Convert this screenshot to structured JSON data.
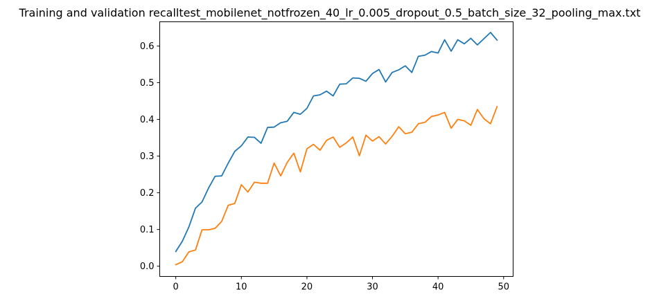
{
  "chart_data": {
    "type": "line",
    "title": "Training and validation recalltest_mobilenet_notfrozen_40_lr_0.005_dropout_0.5_batch_size_32_pooling_max.txt",
    "xlabel": "",
    "ylabel": "",
    "xlim": [
      -2.45,
      51.45
    ],
    "ylim": [
      -0.028,
      0.666
    ],
    "xticks": [
      0,
      10,
      20,
      30,
      40,
      50
    ],
    "yticks": [
      0.0,
      0.1,
      0.2,
      0.3,
      0.4,
      0.5,
      0.6
    ],
    "xtick_labels": [
      "0",
      "10",
      "20",
      "30",
      "40",
      "50"
    ],
    "ytick_labels": [
      "0.0",
      "0.1",
      "0.2",
      "0.3",
      "0.4",
      "0.5",
      "0.6"
    ],
    "grid": false,
    "x": [
      0,
      1,
      2,
      3,
      4,
      5,
      6,
      7,
      8,
      9,
      10,
      11,
      12,
      13,
      14,
      15,
      16,
      17,
      18,
      19,
      20,
      21,
      22,
      23,
      24,
      25,
      26,
      27,
      28,
      29,
      30,
      31,
      32,
      33,
      34,
      35,
      36,
      37,
      38,
      39,
      40,
      41,
      42,
      43,
      44,
      45,
      46,
      47,
      48,
      49
    ],
    "series": [
      {
        "color": "#1f77b4",
        "values": [
          0.04,
          0.068,
          0.107,
          0.158,
          0.175,
          0.213,
          0.245,
          0.246,
          0.281,
          0.313,
          0.328,
          0.352,
          0.351,
          0.335,
          0.378,
          0.379,
          0.391,
          0.395,
          0.419,
          0.414,
          0.43,
          0.464,
          0.467,
          0.477,
          0.464,
          0.496,
          0.497,
          0.513,
          0.512,
          0.504,
          0.525,
          0.536,
          0.502,
          0.528,
          0.535,
          0.546,
          0.528,
          0.572,
          0.575,
          0.585,
          0.581,
          0.617,
          0.586,
          0.617,
          0.606,
          0.621,
          0.603,
          0.62,
          0.637,
          0.616
        ]
      },
      {
        "color": "#ff7f0e",
        "values": [
          0.004,
          0.012,
          0.039,
          0.044,
          0.099,
          0.099,
          0.103,
          0.122,
          0.166,
          0.171,
          0.222,
          0.202,
          0.229,
          0.226,
          0.226,
          0.281,
          0.246,
          0.283,
          0.308,
          0.257,
          0.32,
          0.332,
          0.316,
          0.343,
          0.352,
          0.324,
          0.336,
          0.352,
          0.301,
          0.357,
          0.341,
          0.353,
          0.333,
          0.354,
          0.38,
          0.361,
          0.365,
          0.388,
          0.392,
          0.408,
          0.412,
          0.419,
          0.376,
          0.4,
          0.396,
          0.384,
          0.427,
          0.402,
          0.388,
          0.435
        ]
      }
    ]
  }
}
